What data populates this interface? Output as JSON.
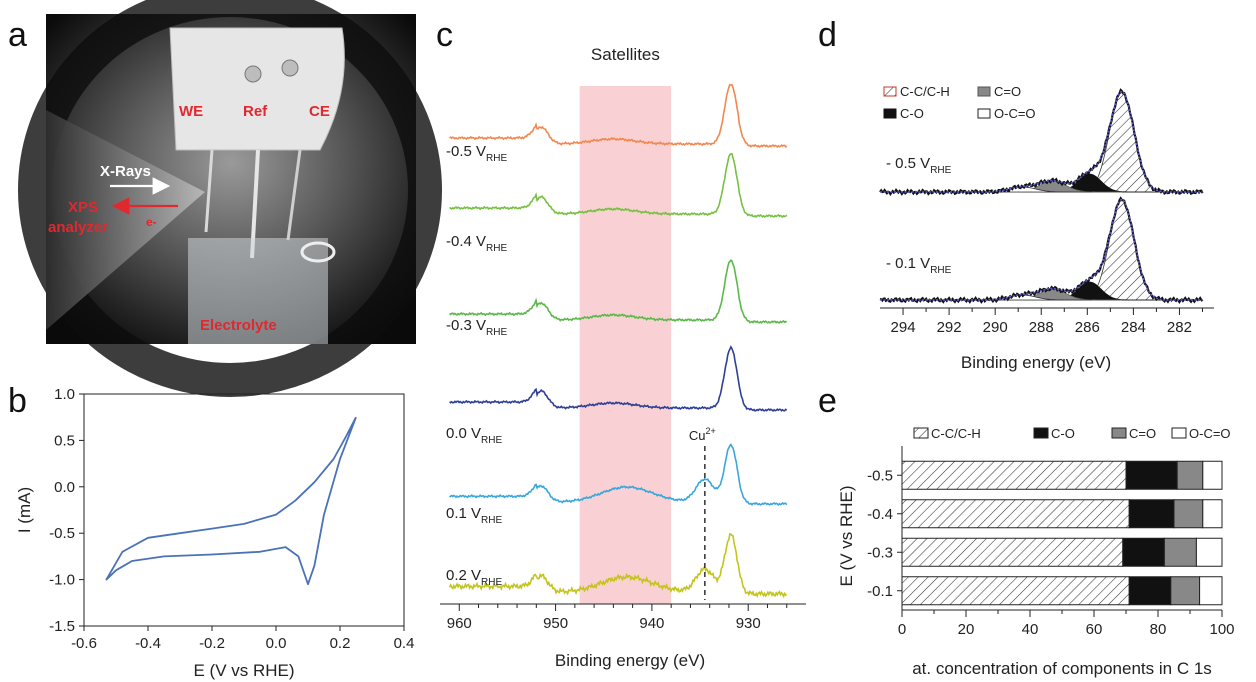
{
  "panels": {
    "a": "a",
    "b": "b",
    "c": "c",
    "d": "d",
    "e": "e"
  },
  "photo": {
    "labels": {
      "we": "WE",
      "ref": "Ref",
      "ce": "CE",
      "xrays": "X-Rays",
      "xps": "XPS",
      "analyzer": "analyzer",
      "electron": "e-",
      "electrolyte": "Electrolyte"
    }
  },
  "colors": {
    "cv": "#4a72b8",
    "highlight": "#f8c9cc"
  },
  "chart_data": [
    {
      "id": "b",
      "type": "line",
      "xlabel": "E (V vs RHE)",
      "ylabel": "I (mA)",
      "xlim": [
        -0.6,
        0.4
      ],
      "ylim": [
        -1.5,
        1.0
      ],
      "xticks": [
        "-0.6",
        "-0.4",
        "-0.2",
        "0.0",
        "0.2",
        "0.4"
      ],
      "yticks": [
        "1.0",
        "0.5",
        "0.0",
        "-0.5",
        "-1.0",
        "-1.5"
      ],
      "series": [
        {
          "x": [
            0.25,
            0.22,
            0.18,
            0.12,
            0.06,
            0.0,
            -0.1,
            -0.2,
            -0.3,
            -0.4,
            -0.48,
            -0.53,
            -0.5,
            -0.45,
            -0.35,
            -0.2,
            -0.05,
            0.03,
            0.07,
            0.09,
            0.1,
            0.12,
            0.15,
            0.2,
            0.25
          ],
          "y": [
            0.75,
            0.55,
            0.3,
            0.05,
            -0.15,
            -0.3,
            -0.4,
            -0.45,
            -0.5,
            -0.55,
            -0.7,
            -1.0,
            -0.9,
            -0.8,
            -0.75,
            -0.73,
            -0.7,
            -0.65,
            -0.75,
            -0.95,
            -1.05,
            -0.85,
            -0.3,
            0.3,
            0.75
          ]
        }
      ]
    },
    {
      "id": "c",
      "type": "line",
      "xlabel": "Binding energy (eV)",
      "ylabel": "",
      "xlim": [
        962,
        924
      ],
      "xticks": [
        "960",
        "950",
        "940",
        "930"
      ],
      "annotations": {
        "satellites": "Satellites",
        "cu2_base": "Cu",
        "cu2_sup": "2+"
      },
      "highlight_range": [
        938,
        947.5
      ],
      "marker_x": 934.5,
      "series": [
        {
          "label_main": "-0.5 V",
          "label_sub": "RHE",
          "color": "#f0884f",
          "cu2": false
        },
        {
          "label_main": "-0.4 V",
          "label_sub": "RHE",
          "color": "#78c043",
          "cu2": false
        },
        {
          "label_main": "-0.3 V",
          "label_sub": "RHE",
          "color": "#5cb84a",
          "cu2": false
        },
        {
          "label_main": "0.0 V",
          "label_sub": "RHE",
          "color": "#2e3f96",
          "cu2": false
        },
        {
          "label_main": "0.1 V",
          "label_sub": "RHE",
          "color": "#3aa7dc",
          "cu2": true
        },
        {
          "label_main": "0.2 V",
          "label_sub": "RHE",
          "color": "#c4c41c",
          "cu2": true
        }
      ]
    },
    {
      "id": "d",
      "type": "area",
      "xlabel": "Binding energy (eV)",
      "xlim": [
        295,
        280.5
      ],
      "xticks": [
        "294",
        "292",
        "290",
        "288",
        "286",
        "284",
        "282"
      ],
      "legend": [
        "C-C/C-H",
        "C-O",
        "C=O",
        "O-C=O"
      ],
      "spectra": [
        {
          "label_main": "- 0.5 V",
          "label_sub": "RHE"
        },
        {
          "label_main": "- 0.1 V",
          "label_sub": "RHE"
        }
      ]
    },
    {
      "id": "e",
      "type": "bar",
      "orientation": "horizontal",
      "stacked": true,
      "xlabel": "at. concentration of components in C 1s",
      "ylabel": "E (V vs RHE)",
      "xlim": [
        0,
        100
      ],
      "xticks": [
        "0",
        "20",
        "40",
        "60",
        "80",
        "100"
      ],
      "categories": [
        "-0.5",
        "-0.4",
        "-0.3",
        "-0.1"
      ],
      "series": [
        {
          "name": "C-C/C-H",
          "values": [
            70,
            71,
            69,
            71
          ]
        },
        {
          "name": "C-O",
          "values": [
            16,
            14,
            13,
            13
          ]
        },
        {
          "name": "C=O",
          "values": [
            8,
            9,
            10,
            9
          ]
        },
        {
          "name": "O-C=O",
          "values": [
            6,
            6,
            8,
            7
          ]
        }
      ]
    }
  ]
}
